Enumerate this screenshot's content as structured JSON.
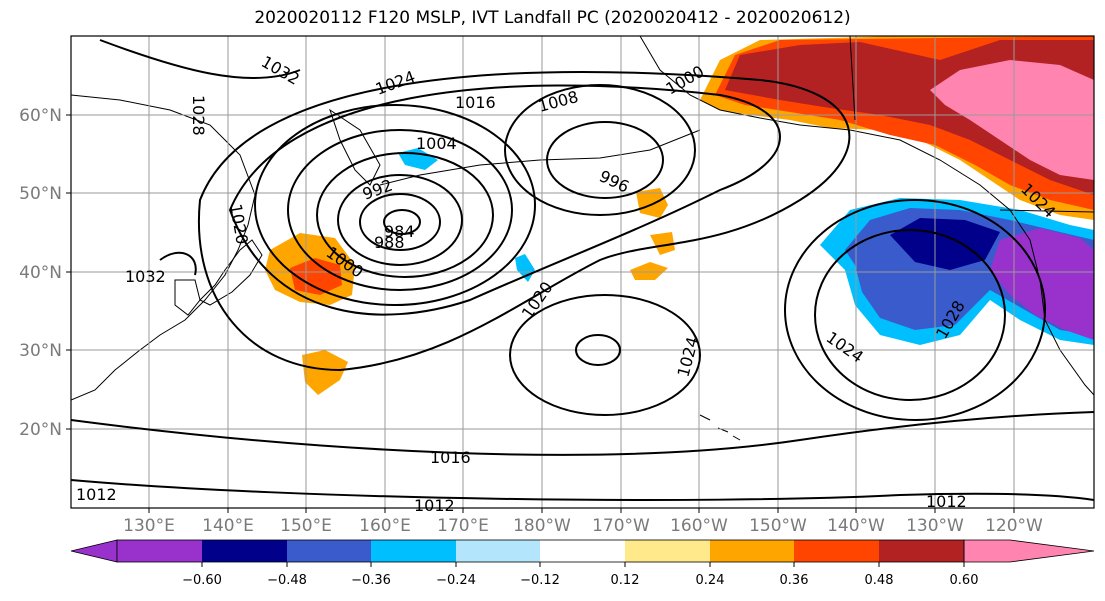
{
  "title": "2020020112 F120 MSLP, IVT Landfall PC (2020020412 - 2020020612)",
  "lon_ticks": [
    "130°E",
    "140°E",
    "150°E",
    "160°E",
    "170°E",
    "180°W",
    "170°W",
    "160°W",
    "150°W",
    "140°W",
    "130°W",
    "120°W"
  ],
  "lat_ticks": [
    "60°N",
    "50°N",
    "40°N",
    "30°N",
    "20°N"
  ],
  "colorbar": {
    "colors": [
      "#9932cc",
      "#00008b",
      "#3a5bcc",
      "#00bfff",
      "#b3e5fc",
      "#ffffff",
      "#ffe98a",
      "#ffa500",
      "#ff4500",
      "#b22222",
      "#ff85b0"
    ],
    "tick_labels": [
      "−0.60",
      "−0.48",
      "−0.36",
      "−0.24",
      "−0.12",
      "0.12",
      "0.24",
      "0.36",
      "0.48",
      "0.60"
    ]
  },
  "isobar_labels": [
    "1032",
    "1024",
    "1016",
    "1008",
    "1000",
    "1028",
    "1004",
    "996",
    "992",
    "984",
    "988",
    "1020",
    "1000",
    "1032",
    "1020",
    "1024",
    "1024",
    "1028",
    "1016",
    "1012",
    "1012",
    "1012",
    "1024"
  ]
}
